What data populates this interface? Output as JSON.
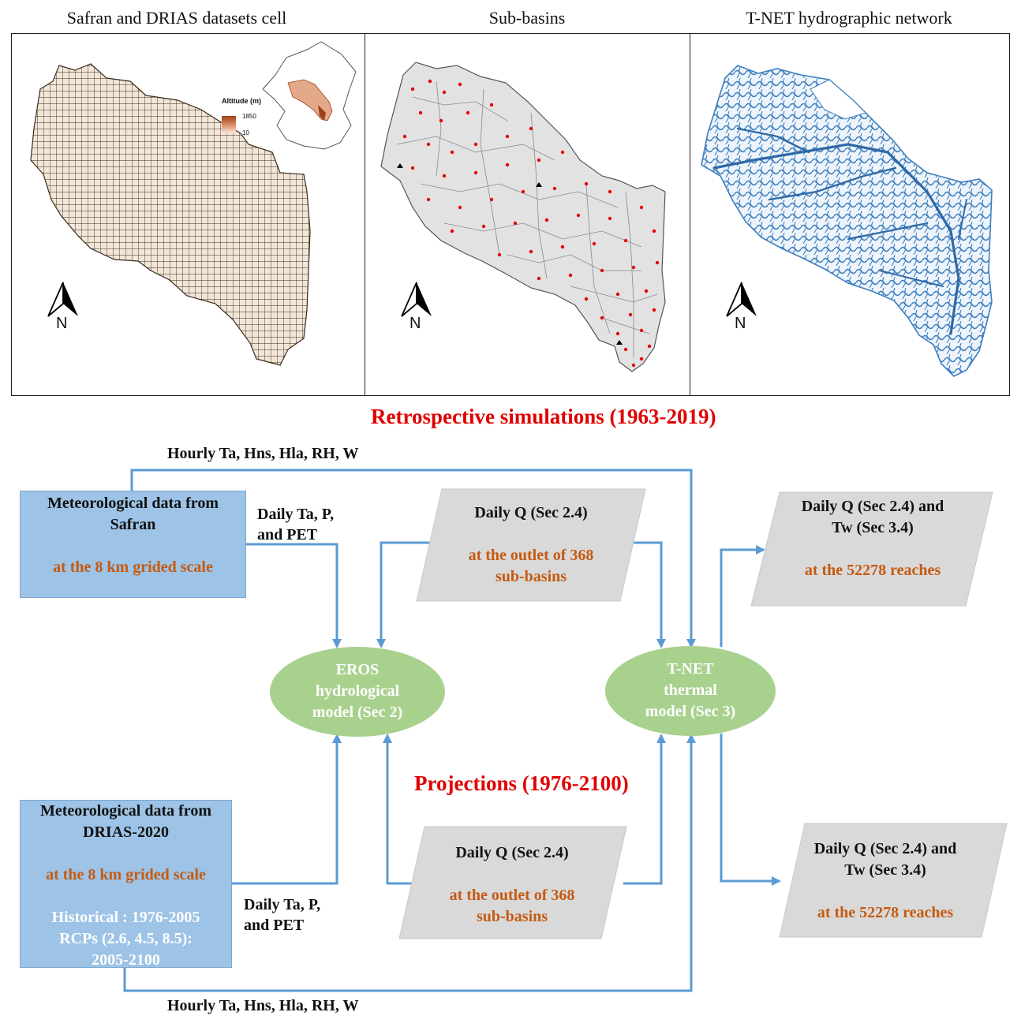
{
  "maps": {
    "safran": {
      "title": "Safran and DRIAS datasets cell",
      "legend_title": "Altitude (m)",
      "legend_max": "1850",
      "legend_min": "10",
      "north": "N"
    },
    "subbasins": {
      "title": "Sub-basins",
      "north": "N"
    },
    "tnet": {
      "title": "T-NET hydrographic network",
      "north": "N"
    }
  },
  "retro_title": "Retrospective simulations (1963-2019)",
  "proj_title": "Projections (1976-2100)",
  "safran_box": {
    "line1": "Meteorological data from",
    "line2": "Safran",
    "scale": "at the 8 km grided scale"
  },
  "drias_box": {
    "line1": "Meteorological data from",
    "line2": "DRIAS-2020",
    "scale": "at the 8 km grided scale",
    "hist": "Historical : 1976-2005",
    "rcp1": "RCPs (2.6, 4.5, 8.5):",
    "rcp2": "2005-2100"
  },
  "labels": {
    "hourly_top": "Hourly Ta, Hns, Hla, RH, W",
    "hourly_bottom": "Hourly Ta, Hns, Hla, RH, W",
    "daily_top_1": "Daily Ta, P,",
    "daily_top_2": "and PET",
    "daily_bottom_1": "Daily Ta, P,",
    "daily_bottom_2": "and PET"
  },
  "q_top": {
    "line1": "Daily Q  (Sec 2.4)",
    "orange1": "at the outlet of 368",
    "orange2": "sub-basins"
  },
  "q_bottom": {
    "line1": "Daily Q  (Sec 2.4)",
    "orange1": "at the outlet of 368",
    "orange2": "sub-basins"
  },
  "out_top": {
    "line1": "Daily Q  (Sec 2.4) and",
    "line2": "Tw  (Sec 3.4)",
    "orange": "at the 52278 reaches"
  },
  "out_bottom": {
    "line1": "Daily Q  (Sec 2.4) and",
    "line2": "Tw  (Sec 3.4)",
    "orange": "at the 52278 reaches"
  },
  "eros": {
    "line1": "EROS",
    "line2": "hydrological",
    "line3": "model (Sec 2)"
  },
  "tnet_model": {
    "line1": "T-NET",
    "line2": "thermal",
    "line3": "model (Sec 3)"
  },
  "colors": {
    "arrow": "#5b9bd5",
    "blue_box": "#9dc3e6",
    "grey_box": "#d9d9d9",
    "ellipse": "#a9d18e",
    "red": "#e00000",
    "orange": "#c55a11",
    "river": "#3d7fbf",
    "basin": "#e2e2e2",
    "outlet": "#e60000"
  }
}
